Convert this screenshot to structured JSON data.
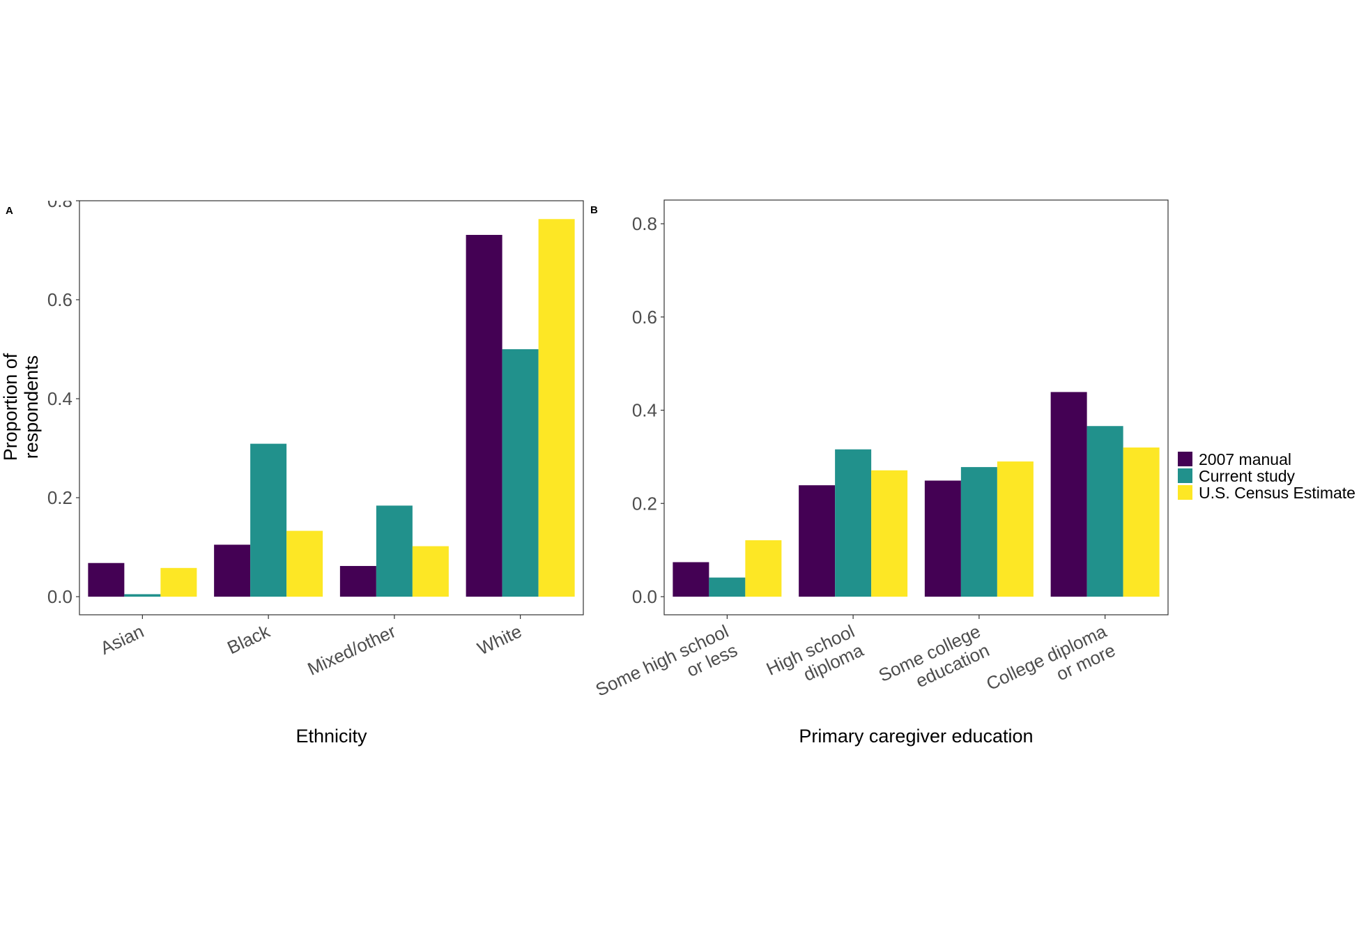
{
  "chart_data": [
    {
      "panel": "A",
      "type": "bar",
      "xlabel": "Ethnicity",
      "ylabel": "Proportion of respondents",
      "ylim": [
        0,
        0.8
      ],
      "yticks": [
        "0.0",
        "0.2",
        "0.4",
        "0.6",
        "0.8"
      ],
      "categories": [
        "Asian",
        "Black",
        "Mixed/other",
        "White"
      ],
      "series": [
        {
          "name": "2007 manual",
          "color": "#440154",
          "values": [
            0.068,
            0.105,
            0.062,
            0.731
          ]
        },
        {
          "name": "Current study",
          "color": "#21918c",
          "values": [
            0.005,
            0.309,
            0.184,
            0.5
          ]
        },
        {
          "name": "U.S. Census Estimate",
          "color": "#fde725",
          "values": [
            0.058,
            0.133,
            0.102,
            0.763
          ]
        }
      ],
      "grid": false
    },
    {
      "panel": "B",
      "type": "bar",
      "xlabel": "Primary caregiver education",
      "ylabel": "",
      "ylim": [
        0,
        0.8
      ],
      "yticks": [
        "0.0",
        "0.2",
        "0.4",
        "0.6",
        "0.8"
      ],
      "categories": [
        [
          "Some high school",
          "or less"
        ],
        [
          "High school",
          "diploma"
        ],
        [
          "Some college",
          "education"
        ],
        [
          "College diploma",
          "or more"
        ]
      ],
      "series": [
        {
          "name": "2007 manual",
          "color": "#440154",
          "values": [
            0.074,
            0.239,
            0.249,
            0.439
          ]
        },
        {
          "name": "Current study",
          "color": "#21918c",
          "values": [
            0.041,
            0.316,
            0.278,
            0.366
          ]
        },
        {
          "name": "U.S. Census Estimate",
          "color": "#fde725",
          "values": [
            0.121,
            0.271,
            0.29,
            0.32
          ]
        }
      ],
      "grid": false
    }
  ],
  "legend": {
    "position": "right",
    "items": [
      {
        "label": "2007 manual",
        "color": "#440154"
      },
      {
        "label": "Current study",
        "color": "#21918c"
      },
      {
        "label": "U.S. Census Estimate",
        "color": "#fde725"
      }
    ]
  }
}
